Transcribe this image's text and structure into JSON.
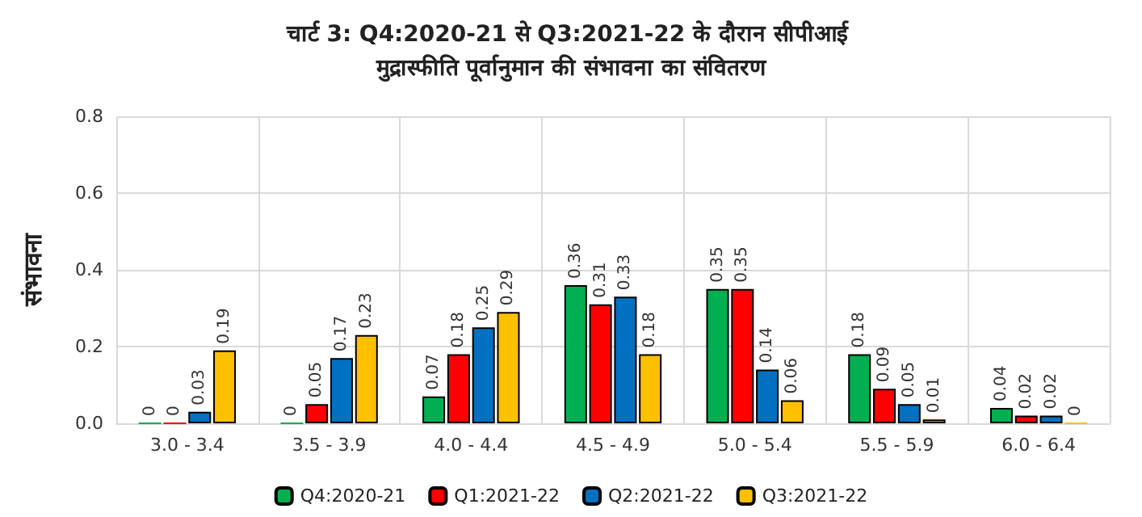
{
  "chart_data": {
    "type": "bar",
    "title": "चार्ट 3: Q4:2020-21 से Q3:2021-22 के दौरान सीपीआई मुद्रास्फीति पूर्वानुमान की संभावना का संवितरण",
    "ylabel": "संभावना",
    "categories": [
      "3.0 - 3.4",
      "3.5 - 3.9",
      "4.0 - 4.4",
      "4.5 - 4.9",
      "5.0 - 5.4",
      "5.5 - 5.9",
      "6.0 - 6.4"
    ],
    "series": [
      {
        "name": "Q4:2020-21",
        "color": "#00b050",
        "values": [
          0,
          0,
          0.07,
          0.36,
          0.35,
          0.18,
          0.04
        ]
      },
      {
        "name": "Q1:2021-22",
        "color": "#ff0000",
        "values": [
          0,
          0.05,
          0.18,
          0.31,
          0.35,
          0.09,
          0.02
        ]
      },
      {
        "name": "Q2:2021-22",
        "color": "#0070c0",
        "values": [
          0.03,
          0.17,
          0.25,
          0.33,
          0.14,
          0.05,
          0.02
        ]
      },
      {
        "name": "Q3:2021-22",
        "color": "#ffc000",
        "values": [
          0.19,
          0.23,
          0.29,
          0.18,
          0.06,
          0.01,
          0
        ]
      }
    ],
    "ylim": [
      0,
      0.8
    ],
    "yticks": [
      {
        "value": 0,
        "label": "0.0"
      },
      {
        "value": 0.2,
        "label": "0.2"
      },
      {
        "value": 0.4,
        "label": "0.4"
      },
      {
        "value": 0.6,
        "label": "0.6"
      },
      {
        "value": 0.8,
        "label": "0.8"
      }
    ],
    "grid": true,
    "legend": "bottom",
    "data_labels": true
  }
}
